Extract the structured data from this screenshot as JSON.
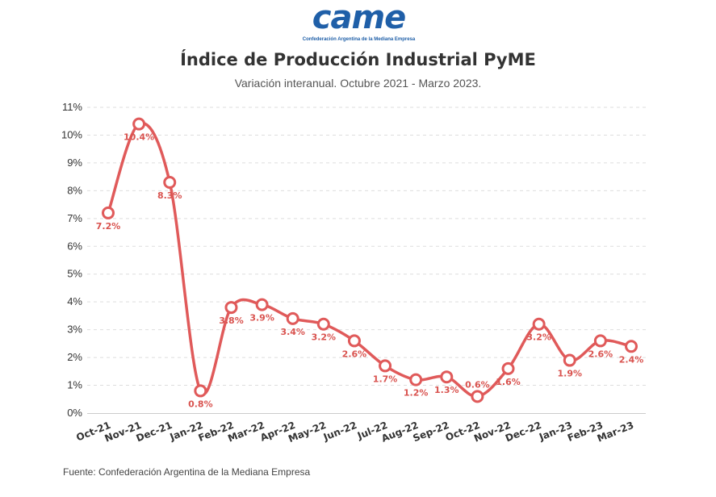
{
  "logo": {
    "text": "came",
    "subtitle": "Confederación Argentina de la Mediana Empresa"
  },
  "chart_data": {
    "type": "line",
    "title": "Índice de Producción Industrial PyME",
    "subtitle": "Variación interanual. Octubre 2021 - Marzo 2023.",
    "source": "Fuente: Confederación Argentina de la Mediana Empresa",
    "categories": [
      "Oct-21",
      "Nov-21",
      "Dec-21",
      "Jan-22",
      "Feb-22",
      "Mar-22",
      "Apr-22",
      "May-22",
      "Jun-22",
      "Jul-22",
      "Aug-22",
      "Sep-22",
      "Oct-22",
      "Nov-22",
      "Dec-22",
      "Jan-23",
      "Feb-23",
      "Mar-23"
    ],
    "values": [
      7.2,
      10.4,
      8.3,
      0.8,
      3.8,
      3.9,
      3.4,
      3.2,
      2.6,
      1.7,
      1.2,
      1.3,
      0.6,
      1.6,
      3.2,
      1.9,
      2.6,
      2.4
    ],
    "data_labels": [
      "7.2%",
      "10.4%",
      "8.3%",
      "0.8%",
      "3.8%",
      "3.9%",
      "3.4%",
      "3.2%",
      "2.6%",
      "1.7%",
      "1.2%",
      "1.3%",
      "0.6%",
      "1.6%",
      "3.2%",
      "1.9%",
      "2.6%",
      "2.4%"
    ],
    "label_position": [
      "below",
      "below",
      "below",
      "below",
      "below",
      "below",
      "below",
      "below",
      "below",
      "below",
      "below",
      "below",
      "above",
      "below",
      "below",
      "below",
      "below",
      "below"
    ],
    "y_ticks": [
      "0%",
      "1%",
      "2%",
      "3%",
      "4%",
      "5%",
      "6%",
      "7%",
      "8%",
      "9%",
      "10%",
      "11%"
    ],
    "ylim": [
      0,
      11
    ],
    "grid": true,
    "line_color": "#e05a5a",
    "label_color": "#d9534f"
  }
}
